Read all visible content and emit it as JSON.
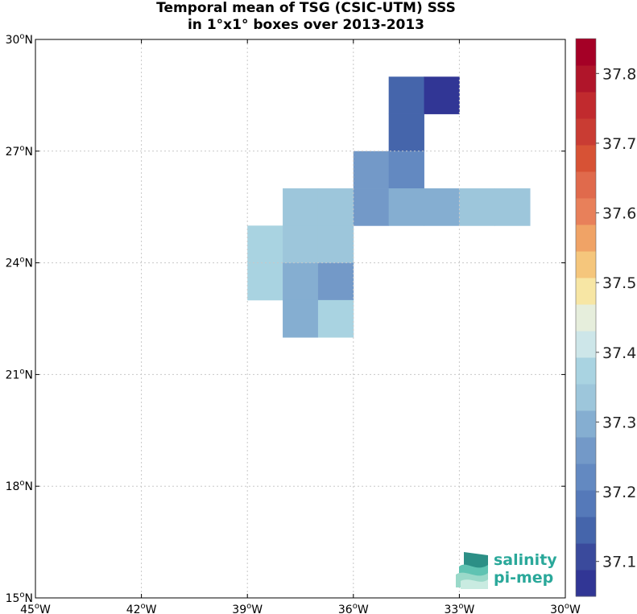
{
  "title": {
    "line1": "Temporal mean of TSG (CSIC-UTM) SSS",
    "line2": "in 1°x1° boxes over 2013-2013"
  },
  "chart_data": {
    "type": "heatmap",
    "title": "Temporal mean of TSG (CSIC-UTM) SSS in 1°x1° boxes over 2013-2013",
    "xlim": [
      -45,
      -30
    ],
    "ylim": [
      15,
      30
    ],
    "grid": true,
    "x_ticks": [
      {
        "value": -45,
        "deg": "45",
        "hem": "W"
      },
      {
        "value": -42,
        "deg": "42",
        "hem": "W"
      },
      {
        "value": -39,
        "deg": "39",
        "hem": "W"
      },
      {
        "value": -36,
        "deg": "36",
        "hem": "W"
      },
      {
        "value": -33,
        "deg": "33",
        "hem": "W"
      },
      {
        "value": -30,
        "deg": "30",
        "hem": "W"
      }
    ],
    "y_ticks": [
      {
        "value": 15,
        "deg": "15",
        "hem": "N"
      },
      {
        "value": 18,
        "deg": "18",
        "hem": "N"
      },
      {
        "value": 21,
        "deg": "21",
        "hem": "N"
      },
      {
        "value": 24,
        "deg": "24",
        "hem": "N"
      },
      {
        "value": 27,
        "deg": "27",
        "hem": "N"
      },
      {
        "value": 30,
        "deg": "30",
        "hem": "N"
      }
    ],
    "colorbar": {
      "min": 37.05,
      "max": 37.85,
      "step": 0.05,
      "colors": [
        "#313695",
        "#3a4a9c",
        "#4565ab",
        "#5579b9",
        "#6389c1",
        "#7399c8",
        "#85aed1",
        "#9dc6db",
        "#a9d3e1",
        "#cde6e9",
        "#e6eedc",
        "#f7e6a4",
        "#f5c67c",
        "#f0a366",
        "#e8805a",
        "#e06a4c",
        "#d75235",
        "#c93c33",
        "#c12a2e",
        "#b0152a",
        "#a50026"
      ],
      "ticks": [
        "37.1",
        "37.2",
        "37.3",
        "37.4",
        "37.5",
        "37.6",
        "37.7",
        "37.8"
      ],
      "tick_values": [
        37.1,
        37.2,
        37.3,
        37.4,
        37.5,
        37.6,
        37.7,
        37.8
      ]
    },
    "cells": [
      {
        "lon_min": -35,
        "lat_min": 28,
        "value": 37.16
      },
      {
        "lon_min": -34,
        "lat_min": 28,
        "value": 37.06
      },
      {
        "lon_min": -35,
        "lat_min": 27,
        "value": 37.16
      },
      {
        "lon_min": -36,
        "lat_min": 26,
        "value": 37.3
      },
      {
        "lon_min": -35,
        "lat_min": 26,
        "value": 37.26
      },
      {
        "lon_min": -38,
        "lat_min": 25,
        "value": 37.4
      },
      {
        "lon_min": -37,
        "lat_min": 25,
        "value": 37.4
      },
      {
        "lon_min": -36,
        "lat_min": 25,
        "value": 37.33
      },
      {
        "lon_min": -35,
        "lat_min": 25,
        "value": 37.35
      },
      {
        "lon_min": -34,
        "lat_min": 25,
        "value": 37.35
      },
      {
        "lon_min": -33,
        "lat_min": 25,
        "value": 37.4
      },
      {
        "lon_min": -32,
        "lat_min": 25,
        "value": 37.4
      },
      {
        "lon_min": -39,
        "lat_min": 24,
        "value": 37.45
      },
      {
        "lon_min": -38,
        "lat_min": 24,
        "value": 37.4
      },
      {
        "lon_min": -37,
        "lat_min": 24,
        "value": 37.4
      },
      {
        "lon_min": -39,
        "lat_min": 23,
        "value": 37.45
      },
      {
        "lon_min": -38,
        "lat_min": 23,
        "value": 37.35
      },
      {
        "lon_min": -37,
        "lat_min": 23,
        "value": 37.31
      },
      {
        "lon_min": -38,
        "lat_min": 22,
        "value": 37.35
      },
      {
        "lon_min": -37,
        "lat_min": 22,
        "value": 37.45
      }
    ]
  },
  "logo": {
    "line1": "salinity",
    "line2": "pi-mep"
  }
}
